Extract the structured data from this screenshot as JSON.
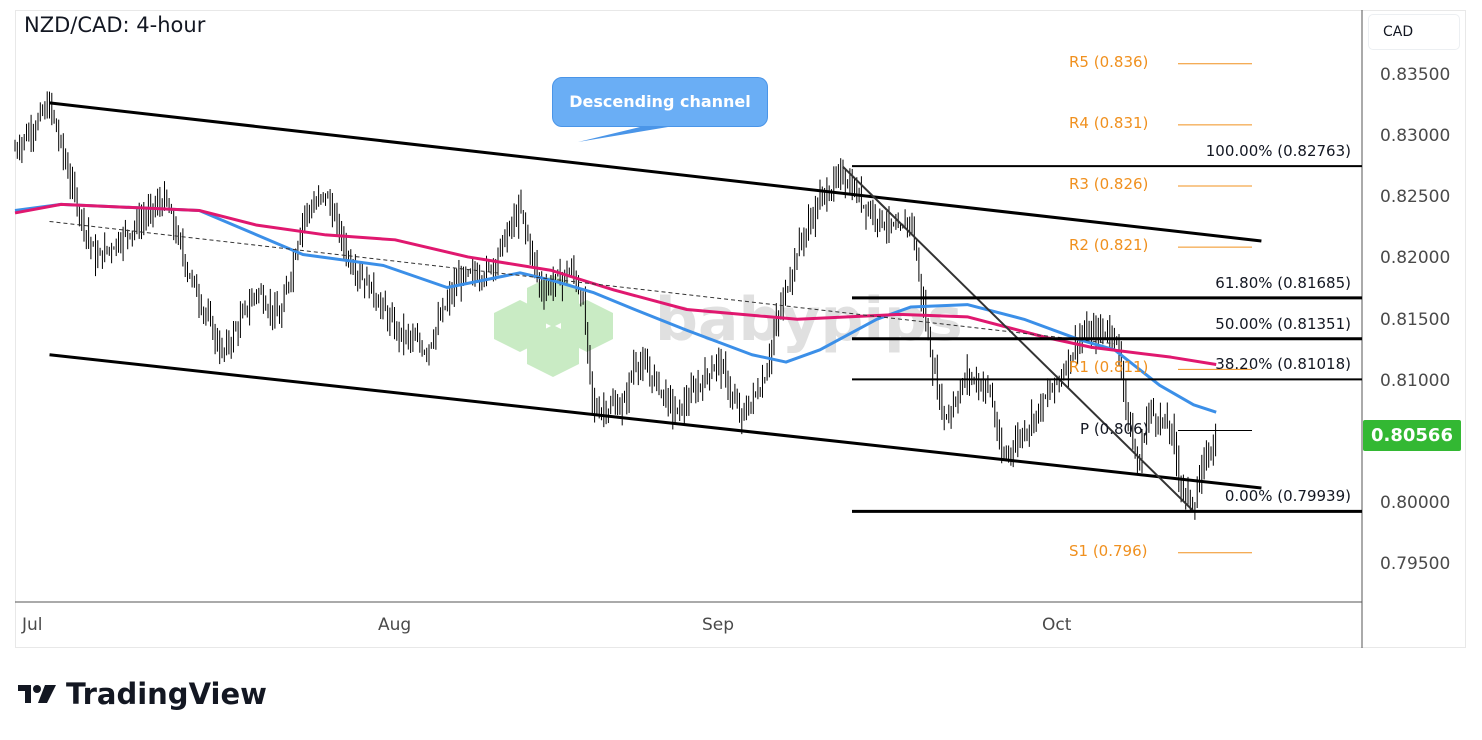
{
  "chart_data": {
    "type": "ohlc",
    "title": "NZD/CAD: 4-hour",
    "currency": "CAD",
    "ylim": [
      0.7915,
      0.8385
    ],
    "y_ticks": [
      "0.83500",
      "0.83000",
      "0.82500",
      "0.82000",
      "0.81500",
      "0.81000",
      "0.80000",
      "0.79500"
    ],
    "x_ticks": [
      "Jul",
      "Aug",
      "Sep",
      "Oct"
    ],
    "last_price": "0.80566",
    "last_price_color": "#33b833",
    "price_path": [
      [
        "Jun 29",
        0.829
      ],
      [
        "Jul 2",
        0.8326
      ],
      [
        "Jul 4",
        0.8257
      ],
      [
        "Jul 6",
        0.82
      ],
      [
        "Jul 9",
        0.8224
      ],
      [
        "Jul 12",
        0.8249
      ],
      [
        "Jul 14",
        0.8191
      ],
      [
        "Jul 17",
        0.8122
      ],
      [
        "Jul 20",
        0.8175
      ],
      [
        "Jul 22",
        0.815
      ],
      [
        "Jul 24",
        0.8236
      ],
      [
        "Jul 26",
        0.8253
      ],
      [
        "Jul 28",
        0.82
      ],
      [
        "Jul 30",
        0.8175
      ],
      [
        "Aug 1",
        0.8142
      ],
      [
        "Aug 4",
        0.8126
      ],
      [
        "Aug 7",
        0.8183
      ],
      [
        "Aug 10",
        0.8191
      ],
      [
        "Aug 13",
        0.8241
      ],
      [
        "Aug 15",
        0.8175
      ],
      [
        "Aug 18",
        0.8191
      ],
      [
        "Aug 19",
        0.8167
      ],
      [
        "Aug 20",
        0.8077
      ],
      [
        "Aug 23",
        0.8081
      ],
      [
        "Aug 24",
        0.8118
      ],
      [
        "Aug 26",
        0.8101
      ],
      [
        "Aug 28",
        0.8073
      ],
      [
        "Sep 1",
        0.8118
      ],
      [
        "Sep 3",
        0.8069
      ],
      [
        "Sep 5",
        0.8101
      ],
      [
        "Sep 6",
        0.8142
      ],
      [
        "Sep 8",
        0.8208
      ],
      [
        "Sep 10",
        0.8249
      ],
      [
        "Sep 12",
        0.8269
      ],
      [
        "Sep 14",
        0.8244
      ],
      [
        "Sep 17",
        0.822
      ],
      [
        "Sep 18",
        0.8236
      ],
      [
        "Sep 19",
        0.8167
      ],
      [
        "Sep 20",
        0.811
      ],
      [
        "Sep 21",
        0.8069
      ],
      [
        "Sep 23",
        0.8105
      ],
      [
        "Sep 25",
        0.8093
      ],
      [
        "Sep 26",
        0.8036
      ],
      [
        "Sep 28",
        0.806
      ],
      [
        "Oct 1",
        0.8101
      ],
      [
        "Oct 3",
        0.8138
      ],
      [
        "Oct 6",
        0.8142
      ],
      [
        "Oct 8",
        0.8027
      ],
      [
        "Oct 9",
        0.8077
      ],
      [
        "Oct 11",
        0.806
      ],
      [
        "Oct 12",
        0.8011
      ],
      [
        "Oct 13",
        0.7999
      ],
      [
        "Oct 14",
        0.8036
      ],
      [
        "Oct 15",
        0.8057
      ]
    ],
    "series": [
      {
        "color": "#3b8fe8",
        "values": [
          [
            "Jun 29",
            0.824
          ],
          [
            "Jul 3",
            0.8245
          ],
          [
            "Jul 15",
            0.824
          ],
          [
            "Jul 24",
            0.8204
          ],
          [
            "Jul 31",
            0.8195
          ],
          [
            "Aug 6",
            0.8177
          ],
          [
            "Aug 13",
            0.8189
          ],
          [
            "Aug 16",
            0.8183
          ],
          [
            "Aug 20",
            0.8173
          ],
          [
            "Aug 24",
            0.8159
          ],
          [
            "Aug 29",
            0.8142
          ],
          [
            "Sep 4",
            0.8122
          ],
          [
            "Sep 7",
            0.8116
          ],
          [
            "Sep 10",
            0.8126
          ],
          [
            "Sep 15",
            0.8151
          ],
          [
            "Sep 18",
            0.8161
          ],
          [
            "Sep 23",
            0.8163
          ],
          [
            "Sep 28",
            0.8151
          ],
          [
            "Oct 3",
            0.8134
          ],
          [
            "Oct 6",
            0.8126
          ],
          [
            "Oct 10",
            0.8097
          ],
          [
            "Oct 13",
            0.8081
          ],
          [
            "Oct 15",
            0.8075
          ]
        ]
      },
      {
        "color": "#e0186f",
        "values": [
          [
            "Jun 29",
            0.8238
          ],
          [
            "Jul 3",
            0.8245
          ],
          [
            "Jul 15",
            0.824
          ],
          [
            "Jul 20",
            0.8228
          ],
          [
            "Jul 26",
            0.822
          ],
          [
            "Aug 1",
            0.8216
          ],
          [
            "Aug 8",
            0.8202
          ],
          [
            "Aug 16",
            0.8191
          ],
          [
            "Aug 22",
            0.8175
          ],
          [
            "Aug 29",
            0.8159
          ],
          [
            "Sep 8",
            0.8151
          ],
          [
            "Sep 17",
            0.8155
          ],
          [
            "Sep 23",
            0.8153
          ],
          [
            "Sep 30",
            0.8136
          ],
          [
            "Oct 4",
            0.8128
          ],
          [
            "Oct 11",
            0.812
          ],
          [
            "Oct 15",
            0.8114
          ]
        ]
      }
    ],
    "annotations": {
      "callout": "Descending channel",
      "channel_upper": [
        [
          "Jul 2",
          0.8328
        ],
        [
          "Oct 19",
          0.8215
        ]
      ],
      "channel_lower": [
        [
          "Jul 2",
          0.8122
        ],
        [
          "Oct 19",
          0.8013
        ]
      ],
      "trendline": [
        [
          "Sep 12",
          0.8276
        ],
        [
          "Oct 13",
          0.7994
        ]
      ],
      "dashed_line": [
        [
          "Jul 2",
          0.8231
        ],
        [
          "Oct 6",
          0.8131
        ]
      ],
      "fib_levels": [
        {
          "price": 0.82763,
          "label": "100.00% (0.82763)"
        },
        {
          "price": 0.81685,
          "label": "61.80% (0.81685)"
        },
        {
          "price": 0.81351,
          "label": "50.00% (0.81351)"
        },
        {
          "price": 0.81018,
          "label": "38.20% (0.81018)"
        },
        {
          "price": 0.79939,
          "label": "0.00% (0.79939)"
        }
      ],
      "pivots": [
        {
          "price": 0.836,
          "label": "R5 (0.836)"
        },
        {
          "price": 0.831,
          "label": "R4 (0.831)"
        },
        {
          "price": 0.826,
          "label": "R3 (0.826)"
        },
        {
          "price": 0.821,
          "label": "R2 (0.821)"
        },
        {
          "price": 0.811,
          "label": "R1 (0.811)"
        },
        {
          "price": 0.806,
          "label": "P (0.806)"
        },
        {
          "price": 0.796,
          "label": "S1 (0.796)"
        }
      ],
      "pivot_color": "#f0901e"
    }
  },
  "watermark": "babypips",
  "footer": {
    "brand": "TradingView"
  }
}
